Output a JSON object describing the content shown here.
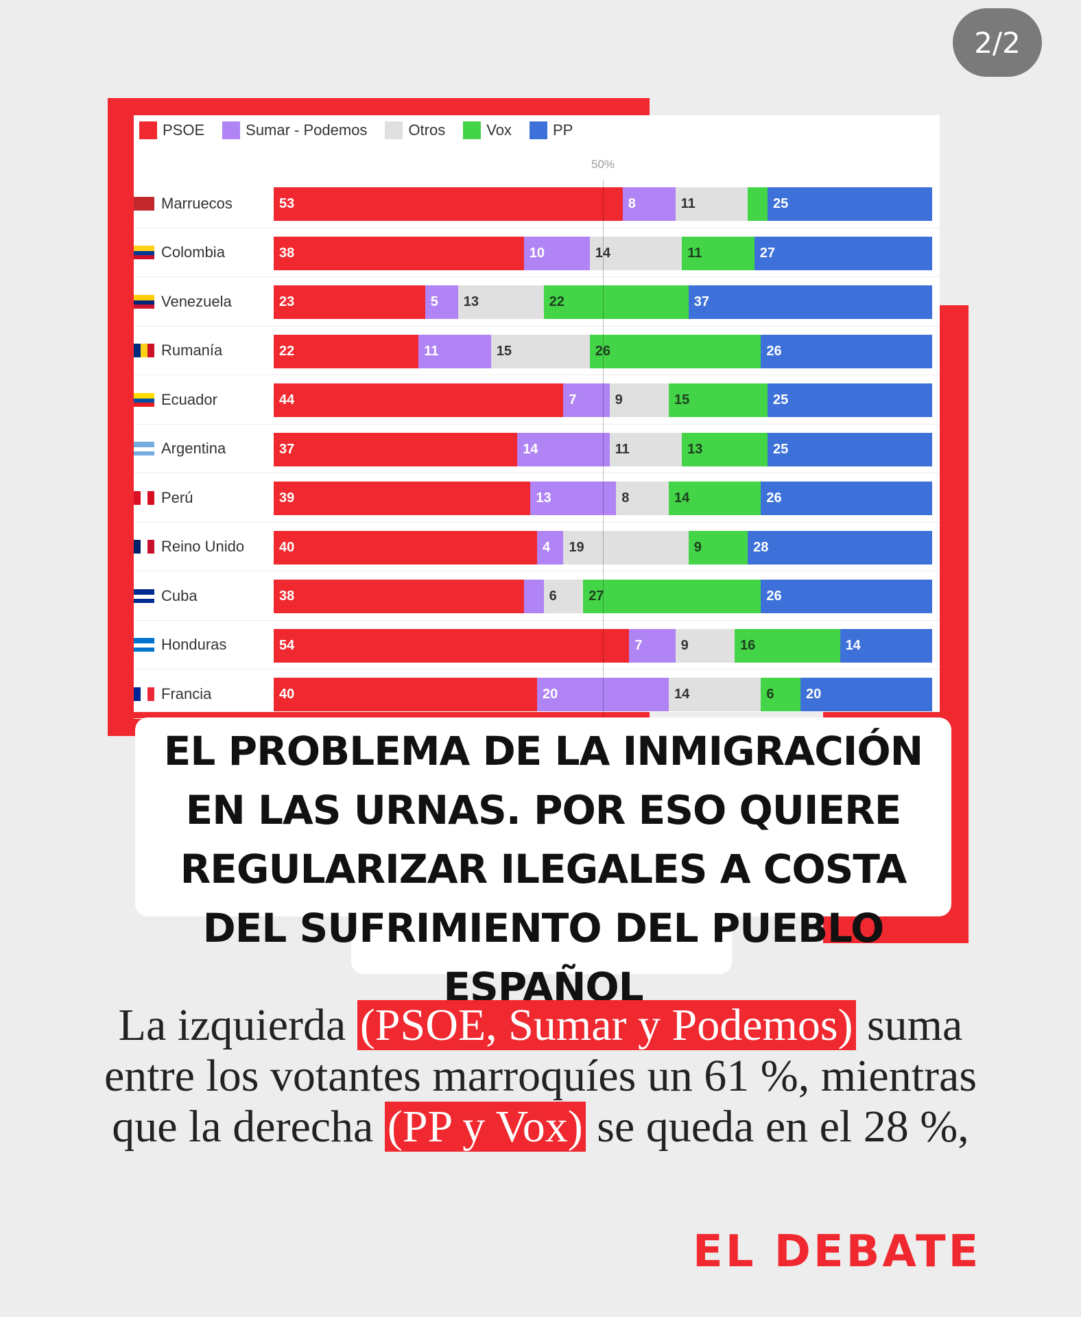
{
  "page_indicator": "2/2",
  "headline": "EL PROBLEMA DE LA INMIGRACIÓN EN LAS URNAS. POR ESO QUIERE REGULARIZAR ILEGALES A COSTA DEL SUFRIMIENTO DEL PUEBLO ESPAÑOL",
  "body": {
    "part1": "La izquierda",
    "hl1": "(PSOE, Sumar y Podemos)",
    "part2": "suma entre los votantes marroquíes un 61 %, mientras que la derecha",
    "hl2": "(PP y Vox)",
    "part3": "se queda en el 28 %,"
  },
  "brand": "EL DEBATE",
  "colors": {
    "accent_red": "#f0282f",
    "PSOE": "#f0282f",
    "Sumar - Podemos": "#b184f5",
    "Otros": "#e0e0e0",
    "Vox": "#43d447",
    "PP": "#3d71d9"
  },
  "chart_data": {
    "type": "bar",
    "stacked": true,
    "orientation": "horizontal",
    "legend_position": "top-left",
    "reference_label": "50%",
    "categories": [
      "Marruecos",
      "Colombia",
      "Venezuela",
      "Rumanía",
      "Ecuador",
      "Argentina",
      "Perú",
      "Reino Unido",
      "Cuba",
      "Honduras",
      "Francia"
    ],
    "series": [
      {
        "name": "PSOE",
        "values": [
          53,
          38,
          23,
          22,
          44,
          37,
          39,
          40,
          38,
          54,
          40
        ],
        "labels": [
          "53",
          "38",
          "23",
          "22",
          "44",
          "37",
          "39",
          "40",
          "38",
          "54",
          "40"
        ]
      },
      {
        "name": "Sumar - Podemos",
        "values": [
          8,
          10,
          5,
          11,
          7,
          14,
          13,
          4,
          3,
          7,
          20
        ],
        "labels": [
          "8",
          "10",
          "5",
          "11",
          "7",
          "14",
          "13",
          "4",
          "",
          "7",
          "20"
        ]
      },
      {
        "name": "Otros",
        "values": [
          11,
          14,
          13,
          15,
          9,
          11,
          8,
          19,
          6,
          9,
          14
        ],
        "labels": [
          "11",
          "14",
          "13",
          "15",
          "9",
          "11",
          "8",
          "19",
          "6",
          "9",
          "14"
        ]
      },
      {
        "name": "Vox",
        "values": [
          3,
          11,
          22,
          26,
          15,
          13,
          14,
          9,
          27,
          16,
          6
        ],
        "labels": [
          "",
          "11",
          "22",
          "26",
          "15",
          "13",
          "14",
          "9",
          "27",
          "16",
          "6"
        ]
      },
      {
        "name": "PP",
        "values": [
          25,
          27,
          37,
          26,
          25,
          25,
          26,
          28,
          26,
          14,
          20
        ],
        "labels": [
          "25",
          "27",
          "37",
          "26",
          "25",
          "25",
          "26",
          "28",
          "26",
          "14",
          "20"
        ]
      }
    ],
    "flags": [
      [
        "#c1272d"
      ],
      [
        "#fcd116",
        "#003893",
        "#ce1126"
      ],
      [
        "#ffcc00",
        "#00247d",
        "#cf142b"
      ],
      [
        "#002b7f",
        "#fcd116",
        "#ce1126"
      ],
      [
        "#ffdd00",
        "#034ea2",
        "#ed1c24"
      ],
      [
        "#74acdf",
        "#ffffff",
        "#74acdf"
      ],
      [
        "#d91023",
        "#ffffff",
        "#d91023"
      ],
      [
        "#012169",
        "#ffffff",
        "#c8102e"
      ],
      [
        "#002a8f",
        "#ffffff",
        "#002a8f"
      ],
      [
        "#0073cf",
        "#ffffff",
        "#0073cf"
      ],
      [
        "#002395",
        "#ffffff",
        "#ed2939"
      ]
    ]
  }
}
